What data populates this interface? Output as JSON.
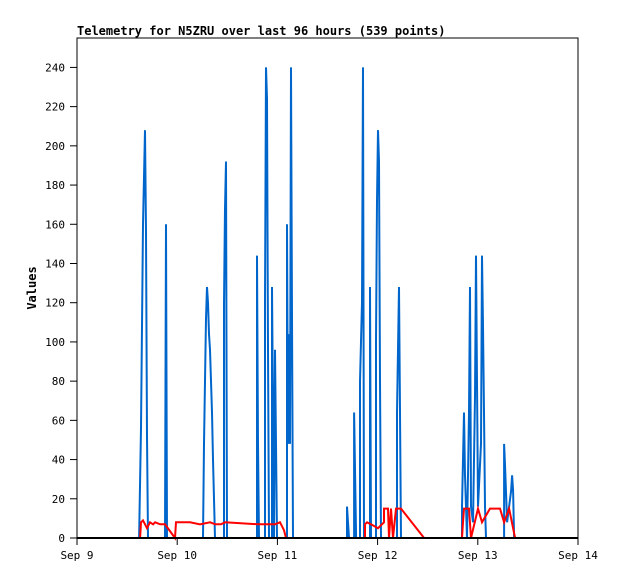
{
  "chart_data": {
    "type": "line",
    "title": "Telemetry for N5ZRU over last 96 hours (539 points)",
    "xlabel": "",
    "ylabel": "Values",
    "xlim": [
      0,
      5
    ],
    "ylim": [
      0,
      255
    ],
    "x_unit": "days since Sep 9",
    "x_ticks": [
      {
        "v": 0,
        "label": "Sep 9"
      },
      {
        "v": 1,
        "label": "Sep 10"
      },
      {
        "v": 2,
        "label": "Sep 11"
      },
      {
        "v": 3,
        "label": "Sep 12"
      },
      {
        "v": 4,
        "label": "Sep 13"
      },
      {
        "v": 5,
        "label": "Sep 14"
      }
    ],
    "y_ticks": [
      0,
      20,
      40,
      60,
      80,
      100,
      120,
      140,
      160,
      180,
      200,
      220,
      240
    ],
    "grid": false,
    "series": [
      {
        "name": "blue",
        "color": "#0066cc",
        "points": [
          [
            0.62,
            0
          ],
          [
            0.639,
            56
          ],
          [
            0.659,
            160
          ],
          [
            0.679,
            208
          ],
          [
            0.689,
            156
          ],
          [
            0.699,
            52
          ],
          [
            0.709,
            0
          ],
          [
            0.878,
            0
          ],
          [
            0.888,
            160
          ],
          [
            0.898,
            0
          ],
          [
            1.257,
            0
          ],
          [
            1.267,
            48
          ],
          [
            1.277,
            80
          ],
          [
            1.287,
            112
          ],
          [
            1.297,
            128
          ],
          [
            1.307,
            120
          ],
          [
            1.317,
            104
          ],
          [
            1.327,
            96
          ],
          [
            1.337,
            80
          ],
          [
            1.347,
            64
          ],
          [
            1.357,
            40
          ],
          [
            1.367,
            20
          ],
          [
            1.377,
            0
          ],
          [
            1.467,
            0
          ],
          [
            1.467,
            120
          ],
          [
            1.477,
            168
          ],
          [
            1.487,
            192
          ],
          [
            1.497,
            0
          ],
          [
            1.796,
            0
          ],
          [
            1.796,
            144
          ],
          [
            1.806,
            48
          ],
          [
            1.816,
            0
          ],
          [
            1.876,
            0
          ],
          [
            1.876,
            120
          ],
          [
            1.886,
            240
          ],
          [
            1.896,
            224
          ],
          [
            1.906,
            96
          ],
          [
            1.916,
            0
          ],
          [
            1.946,
            0
          ],
          [
            1.946,
            128
          ],
          [
            1.956,
            64
          ],
          [
            1.966,
            0
          ],
          [
            1.976,
            96
          ],
          [
            1.986,
            48
          ],
          [
            1.996,
            0
          ],
          [
            2.096,
            0
          ],
          [
            2.096,
            160
          ],
          [
            2.106,
            48
          ],
          [
            2.116,
            104
          ],
          [
            2.126,
            48
          ],
          [
            2.136,
            240
          ],
          [
            2.146,
            112
          ],
          [
            2.156,
            0
          ],
          [
            2.695,
            0
          ],
          [
            2.695,
            16
          ],
          [
            2.705,
            8
          ],
          [
            2.715,
            0
          ],
          [
            2.765,
            0
          ],
          [
            2.765,
            64
          ],
          [
            2.775,
            32
          ],
          [
            2.785,
            0
          ],
          [
            2.824,
            0
          ],
          [
            2.824,
            80
          ],
          [
            2.844,
            120
          ],
          [
            2.854,
            240
          ],
          [
            2.864,
            0
          ],
          [
            2.924,
            0
          ],
          [
            2.924,
            128
          ],
          [
            2.934,
            0
          ],
          [
            2.984,
            0
          ],
          [
            2.984,
            100
          ],
          [
            2.994,
            172
          ],
          [
            3.004,
            208
          ],
          [
            3.014,
            192
          ],
          [
            3.024,
            80
          ],
          [
            3.034,
            0
          ],
          [
            3.194,
            0
          ],
          [
            3.194,
            64
          ],
          [
            3.204,
            96
          ],
          [
            3.214,
            128
          ],
          [
            3.224,
            64
          ],
          [
            3.234,
            0
          ],
          [
            3.842,
            0
          ],
          [
            3.842,
            16
          ],
          [
            3.862,
            64
          ],
          [
            3.872,
            32
          ],
          [
            3.892,
            0
          ],
          [
            3.912,
            64
          ],
          [
            3.922,
            128
          ],
          [
            3.932,
            16
          ],
          [
            3.952,
            8
          ],
          [
            3.972,
            72
          ],
          [
            3.982,
            144
          ],
          [
            4.002,
            16
          ],
          [
            4.032,
            48
          ],
          [
            4.042,
            144
          ],
          [
            4.052,
            108
          ],
          [
            4.062,
            64
          ],
          [
            4.072,
            16
          ],
          [
            4.082,
            0
          ],
          [
            4.262,
            0
          ],
          [
            4.262,
            48
          ],
          [
            4.272,
            36
          ],
          [
            4.292,
            8
          ],
          [
            4.332,
            24
          ],
          [
            4.342,
            32
          ],
          [
            4.352,
            24
          ],
          [
            4.362,
            0
          ]
        ]
      },
      {
        "name": "red",
        "color": "#ff0000",
        "points": [
          [
            0.63,
            0
          ],
          [
            0.639,
            8
          ],
          [
            0.659,
            9
          ],
          [
            0.699,
            5
          ],
          [
            0.729,
            8
          ],
          [
            0.759,
            7
          ],
          [
            0.779,
            8
          ],
          [
            0.829,
            7
          ],
          [
            0.878,
            7
          ],
          [
            0.978,
            0
          ],
          [
            0.988,
            8
          ],
          [
            1.028,
            8
          ],
          [
            1.128,
            8
          ],
          [
            1.228,
            7
          ],
          [
            1.328,
            8
          ],
          [
            1.378,
            7
          ],
          [
            1.437,
            7
          ],
          [
            1.477,
            8
          ],
          [
            1.806,
            7
          ],
          [
            1.976,
            7
          ],
          [
            2.026,
            8
          ],
          [
            2.066,
            4
          ],
          [
            2.086,
            0
          ],
          [
            2.874,
            0
          ],
          [
            2.874,
            7
          ],
          [
            2.894,
            8
          ],
          [
            2.934,
            7
          ],
          [
            3.004,
            5
          ],
          [
            3.064,
            8
          ],
          [
            3.064,
            15
          ],
          [
            3.104,
            15
          ],
          [
            3.114,
            0
          ],
          [
            3.134,
            15
          ],
          [
            3.154,
            0
          ],
          [
            3.184,
            15
          ],
          [
            3.234,
            15
          ],
          [
            3.464,
            0
          ],
          [
            3.842,
            0
          ],
          [
            3.852,
            8
          ],
          [
            3.862,
            15
          ],
          [
            3.912,
            15
          ],
          [
            3.932,
            0
          ],
          [
            4.002,
            15
          ],
          [
            4.042,
            8
          ],
          [
            4.122,
            15
          ],
          [
            4.222,
            15
          ],
          [
            4.262,
            8
          ],
          [
            4.312,
            15
          ],
          [
            4.372,
            0
          ]
        ]
      }
    ]
  }
}
